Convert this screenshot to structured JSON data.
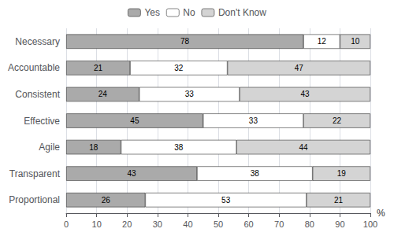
{
  "chart_data": {
    "type": "bar",
    "orientation": "horizontal",
    "stacked": true,
    "categories": [
      "Necessary",
      "Accountable",
      "Consistent",
      "Effective",
      "Agile",
      "Transparent",
      "Proportional"
    ],
    "series": [
      {
        "name": "Yes",
        "color": "#aaaaaa",
        "values": [
          78,
          21,
          24,
          45,
          18,
          43,
          26
        ]
      },
      {
        "name": "No",
        "color": "#ffffff",
        "values": [
          12,
          32,
          33,
          33,
          38,
          38,
          53
        ]
      },
      {
        "name": "Don't Know",
        "color": "#d4d4d4",
        "values": [
          10,
          47,
          43,
          22,
          44,
          19,
          21
        ]
      }
    ],
    "xlabel": "%",
    "xlim": [
      0,
      100
    ],
    "xticks": [
      0,
      10,
      20,
      30,
      40,
      50,
      60,
      70,
      80,
      90,
      100
    ],
    "grid": true,
    "legend": "top",
    "data_labels": true
  }
}
